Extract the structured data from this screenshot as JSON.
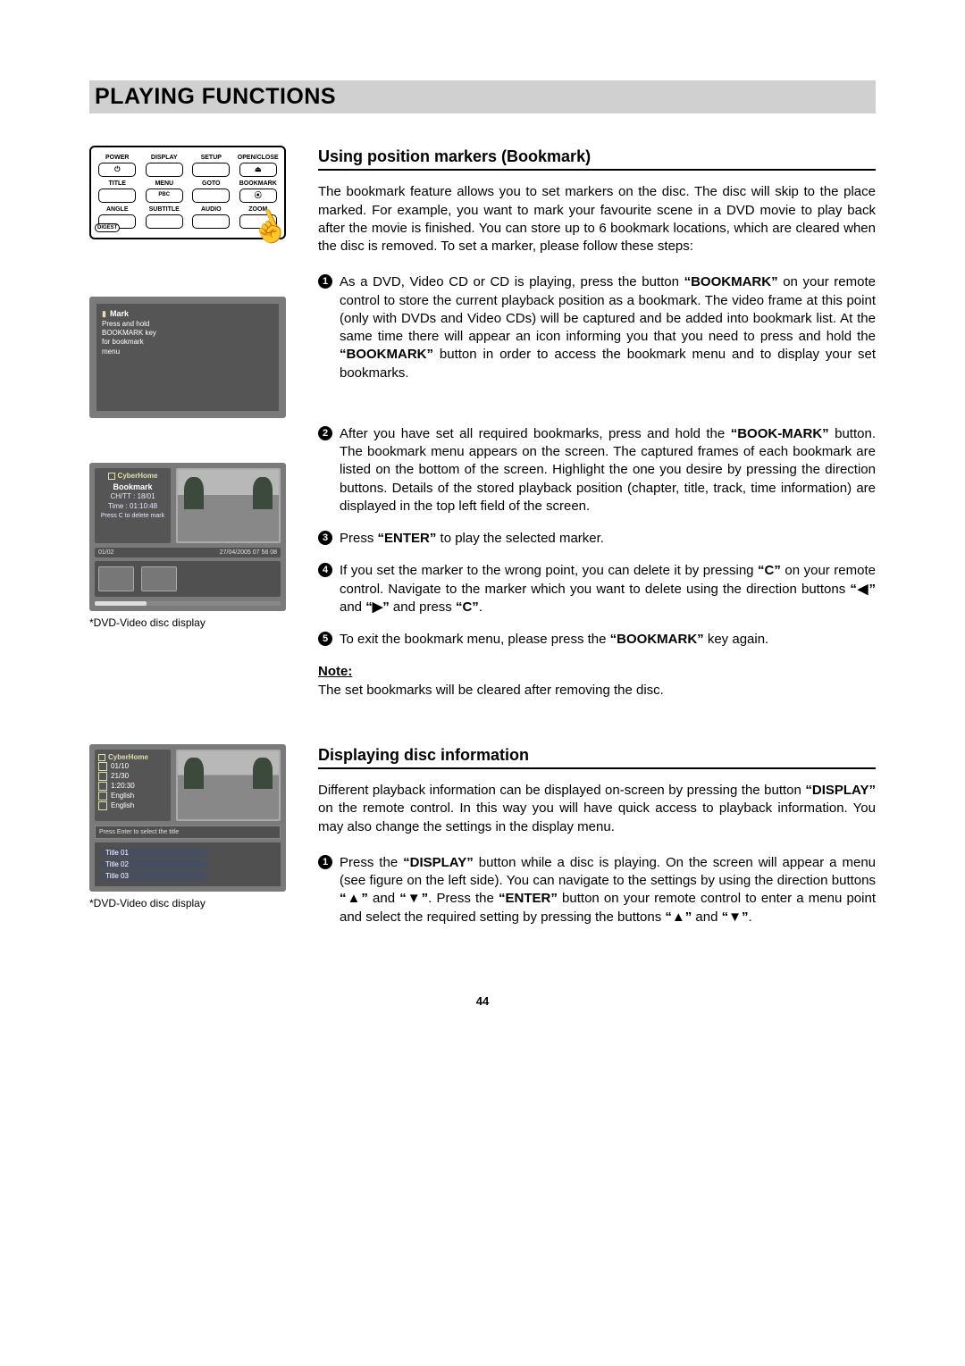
{
  "page": {
    "title": "PLAYING FUNCTIONS",
    "number": "44"
  },
  "remote": {
    "rows": [
      [
        "POWER",
        "DISPLAY",
        "SETUP",
        "OPEN/CLOSE"
      ],
      [
        "TITLE",
        "MENU",
        "GOTO",
        "BOOKMARK"
      ],
      [
        "ANGLE",
        "SUBTITLE",
        "AUDIO",
        "ZOOM"
      ]
    ],
    "digest": "DIGEST",
    "pbc": "PBC",
    "power_symbol": "⏻",
    "eject_symbol": "⏏",
    "bookmark_symbol": "⦿"
  },
  "osd_mark": {
    "title": "Mark",
    "lines": [
      "Press and hold",
      "BOOKMARK key",
      "for bookmark",
      "menu"
    ]
  },
  "osd_bookmark": {
    "brand": "CyberHome",
    "title": "Bookmark",
    "chtt": "CH/TT : 18/01",
    "time": "Time : 01:10:48",
    "hint": "Press C to delete mark",
    "status_left": "01/02",
    "status_right": "27/04/2005 07 58 08",
    "caption": "*DVD-Video disc display"
  },
  "osd_display": {
    "brand": "CyberHome",
    "items": [
      "01/10",
      "21/30",
      "1:20:30",
      "English",
      "English"
    ],
    "mid": "Press Enter to select the title",
    "titles": [
      "Title 01",
      "Title 02",
      "Title 03"
    ],
    "caption": "*DVD-Video disc display"
  },
  "section_bookmark": {
    "heading": "Using position markers (Bookmark)",
    "intro": "The bookmark feature allows you to set markers on the disc. The disc will skip to the place marked. For example, you want to mark your favourite scene in a DVD movie to play back after the movie is finished. You can store up to 6 bookmark locations, which are cleared when the disc is removed. To set a marker, please follow these steps:",
    "steps": [
      "As a DVD, Video CD or CD is playing, press the button <b>“BOOKMARK”</b> on your remote control to store the current playback position as a bookmark. The video frame at this point (only with DVDs and Video CDs) will be captured and be added into bookmark list. At the same time there will appear an icon informing you that you need to press and hold the <b>“BOOKMARK”</b> button in order to access the bookmark menu and to display your set bookmarks.",
      "After you have set all required bookmarks, press and hold the <b>“BOOK-MARK”</b> button. The bookmark menu appears on the screen. The captured frames of each bookmark are listed on the bottom of the screen. Highlight the one you desire by pressing the direction buttons. Details of the stored playback position (chapter, title, track, time information) are displayed in the top left field of the screen.",
      "Press <b>“ENTER”</b> to play the selected marker.",
      "If you set the marker to the wrong point, you can delete it by pressing <b>“C”</b> on your remote control. Navigate to the marker which you want to delete using the direction buttons <b>“◀”</b> and <b>“▶”</b> and press <b>“C”</b>.",
      "To exit the bookmark menu, please press the <b>“BOOKMARK”</b> key again."
    ],
    "note_label": "Note:",
    "note_text": "The set bookmarks will be cleared after removing the disc."
  },
  "section_display": {
    "heading": "Displaying disc information",
    "intro": "Different playback information can be displayed on-screen by pressing the button <b>“DISPLAY”</b> on the remote control. In this way you will have quick access to playback information. You may also change the settings in the display menu.",
    "steps": [
      "Press the <b>“DISPLAY”</b> button while a disc is playing. On the screen will appear a menu (see figure on the left side). You can navigate to the settings by using the direction buttons <b>“▲”</b> and <b>“▼”</b>. Press the <b>“ENTER”</b> button on your remote control to enter a menu point and select the required setting by pressing the buttons <b>“▲”</b> and <b>“▼”</b>."
    ]
  }
}
